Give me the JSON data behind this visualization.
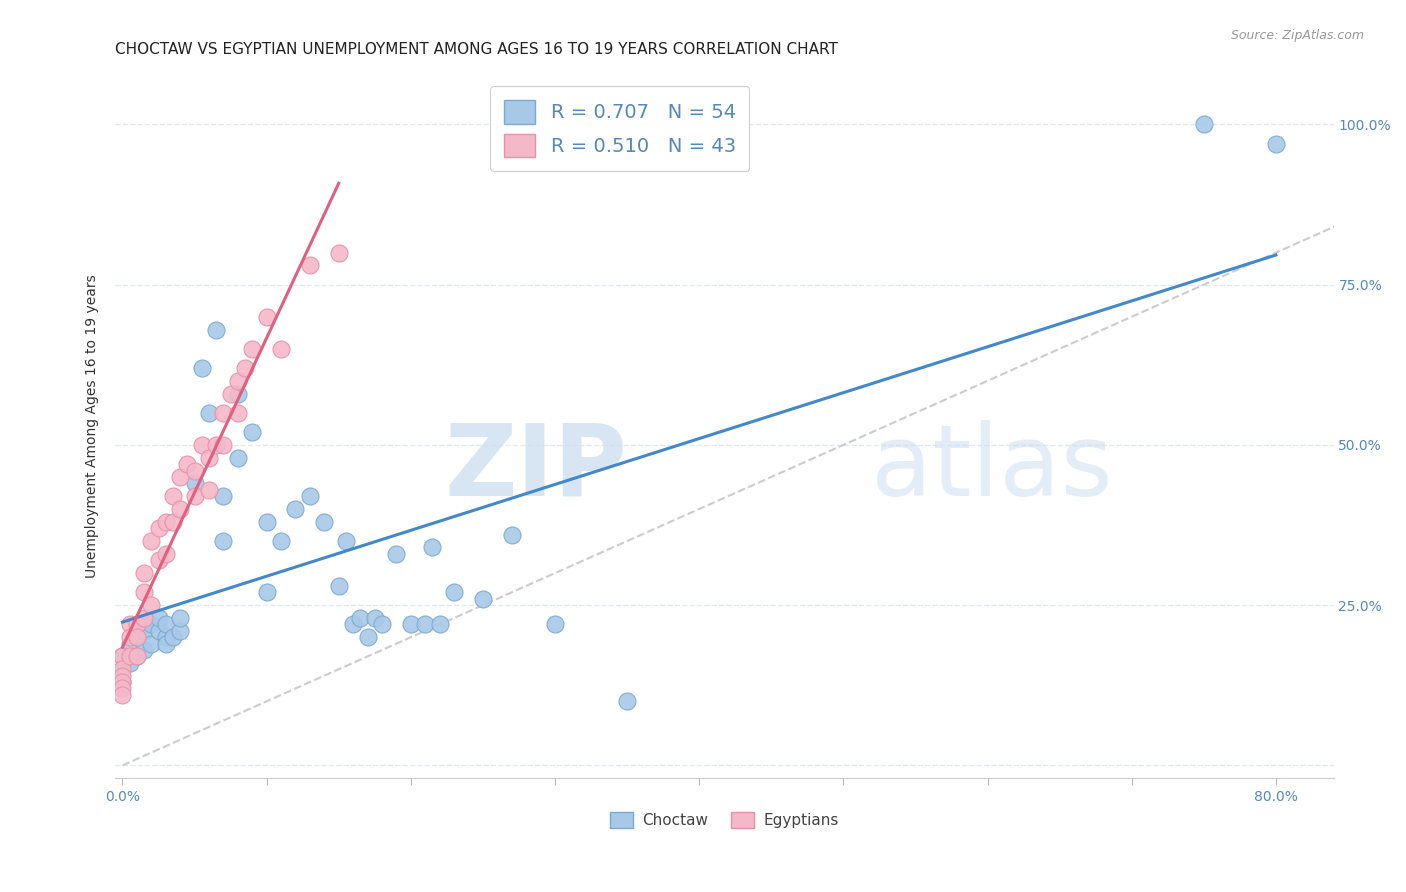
{
  "title": "CHOCTAW VS EGYPTIAN UNEMPLOYMENT AMONG AGES 16 TO 19 YEARS CORRELATION CHART",
  "source": "Source: ZipAtlas.com",
  "ylabel_label": "Unemployment Among Ages 16 to 19 years",
  "xlim": [
    -0.005,
    0.84
  ],
  "ylim": [
    -0.02,
    1.08
  ],
  "choctaw_color": "#A8C8E8",
  "choctaw_edge": "#7AAAD0",
  "egyptian_color": "#F4B8C8",
  "egyptian_edge": "#E890A8",
  "regression_blue": "#4488CC",
  "regression_pink": "#E06080",
  "diagonal_color": "#CCCCCC",
  "choctaw_R": 0.707,
  "choctaw_N": 54,
  "egyptian_R": 0.51,
  "egyptian_N": 43,
  "legend_choctaw": "Choctaw",
  "legend_egyptians": "Egyptians",
  "choctaw_x": [
    0.0,
    0.0,
    0.0,
    0.005,
    0.005,
    0.01,
    0.01,
    0.01,
    0.015,
    0.015,
    0.02,
    0.02,
    0.025,
    0.025,
    0.03,
    0.03,
    0.03,
    0.035,
    0.04,
    0.04,
    0.05,
    0.055,
    0.06,
    0.065,
    0.07,
    0.07,
    0.08,
    0.08,
    0.09,
    0.1,
    0.1,
    0.11,
    0.12,
    0.13,
    0.14,
    0.15,
    0.155,
    0.16,
    0.165,
    0.17,
    0.175,
    0.18,
    0.19,
    0.2,
    0.21,
    0.215,
    0.22,
    0.23,
    0.25,
    0.27,
    0.3,
    0.35,
    0.75,
    0.8
  ],
  "choctaw_y": [
    0.17,
    0.15,
    0.13,
    0.19,
    0.16,
    0.22,
    0.2,
    0.17,
    0.21,
    0.18,
    0.22,
    0.19,
    0.21,
    0.23,
    0.2,
    0.22,
    0.19,
    0.2,
    0.21,
    0.23,
    0.44,
    0.62,
    0.55,
    0.68,
    0.42,
    0.35,
    0.58,
    0.48,
    0.52,
    0.38,
    0.27,
    0.35,
    0.4,
    0.42,
    0.38,
    0.28,
    0.35,
    0.22,
    0.23,
    0.2,
    0.23,
    0.22,
    0.33,
    0.22,
    0.22,
    0.34,
    0.22,
    0.27,
    0.26,
    0.36,
    0.22,
    0.1,
    1.0,
    0.97
  ],
  "egyptian_x": [
    0.0,
    0.0,
    0.0,
    0.0,
    0.0,
    0.0,
    0.005,
    0.005,
    0.005,
    0.01,
    0.01,
    0.01,
    0.015,
    0.015,
    0.015,
    0.02,
    0.02,
    0.025,
    0.025,
    0.03,
    0.03,
    0.035,
    0.035,
    0.04,
    0.04,
    0.045,
    0.05,
    0.05,
    0.055,
    0.06,
    0.06,
    0.065,
    0.07,
    0.07,
    0.075,
    0.08,
    0.08,
    0.085,
    0.09,
    0.1,
    0.11,
    0.13,
    0.15
  ],
  "egyptian_y": [
    0.17,
    0.15,
    0.14,
    0.13,
    0.12,
    0.11,
    0.22,
    0.2,
    0.17,
    0.22,
    0.2,
    0.17,
    0.3,
    0.27,
    0.23,
    0.35,
    0.25,
    0.37,
    0.32,
    0.38,
    0.33,
    0.42,
    0.38,
    0.45,
    0.4,
    0.47,
    0.46,
    0.42,
    0.5,
    0.48,
    0.43,
    0.5,
    0.55,
    0.5,
    0.58,
    0.6,
    0.55,
    0.62,
    0.65,
    0.7,
    0.65,
    0.78,
    0.8
  ],
  "watermark_zip": "ZIP",
  "watermark_atlas": "atlas",
  "background_color": "#FFFFFF",
  "grid_color": "#E0E8F0",
  "axis_color": "#5588BB",
  "title_fontsize": 11,
  "label_fontsize": 10,
  "tick_fontsize": 10
}
